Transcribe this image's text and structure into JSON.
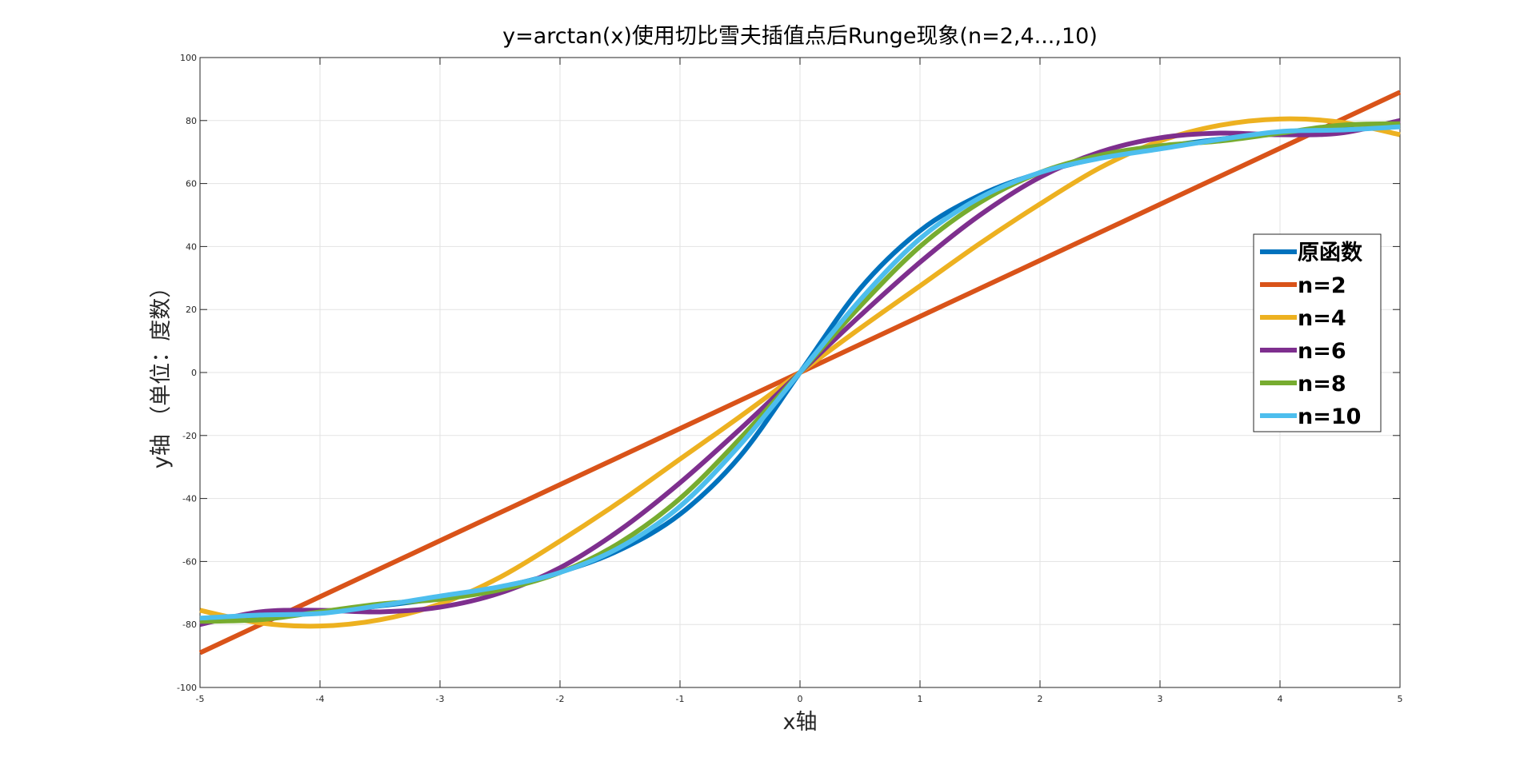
{
  "chart_data": {
    "type": "line",
    "title": "y=arctan(x)使用切比雪夫插值点后Runge现象(n=2,4...,10)",
    "xlabel": "x轴",
    "ylabel": "y轴 （单位：度数）",
    "xlim": [
      -5,
      5
    ],
    "ylim": [
      -100,
      100
    ],
    "xticks": [
      -5,
      -4,
      -3,
      -2,
      -1,
      0,
      1,
      2,
      3,
      4,
      5
    ],
    "yticks": [
      -100,
      -80,
      -60,
      -40,
      -20,
      0,
      20,
      40,
      60,
      80,
      100
    ],
    "grid": true,
    "legend_position": "right",
    "x": [
      -5,
      -4.5,
      -4,
      -3.5,
      -3,
      -2.5,
      -2,
      -1.5,
      -1,
      -0.5,
      0,
      0.5,
      1,
      1.5,
      2,
      2.5,
      3,
      3.5,
      4,
      4.5,
      5
    ],
    "series": [
      {
        "name": "原函数",
        "color": "#0072BD",
        "values": [
          -78.7,
          -77.5,
          -76.0,
          -74.1,
          -71.6,
          -68.2,
          -63.4,
          -56.3,
          -45.0,
          -26.6,
          0,
          26.6,
          45.0,
          56.3,
          63.4,
          68.2,
          71.6,
          74.1,
          76.0,
          77.5,
          78.7
        ]
      },
      {
        "name": "n=2",
        "color": "#D95319",
        "values": [
          -89,
          -80.1,
          -71.2,
          -62.3,
          -53.4,
          -44.5,
          -35.6,
          -26.7,
          -17.8,
          -8.9,
          0,
          8.9,
          17.8,
          26.7,
          35.6,
          44.5,
          53.4,
          62.3,
          71.2,
          80.1,
          89
        ]
      },
      {
        "name": "n=4",
        "color": "#EDB120",
        "values": [
          -75.5,
          -79.5,
          -80.5,
          -78.5,
          -73.5,
          -65,
          -53.5,
          -41,
          -27.5,
          -14,
          0,
          14,
          27.5,
          41,
          53.5,
          65,
          73.5,
          78.5,
          80.5,
          79.5,
          75.5
        ]
      },
      {
        "name": "n=6",
        "color": "#7E2F8E",
        "values": [
          -80,
          -76,
          -75.5,
          -76,
          -74.5,
          -70,
          -62,
          -50,
          -35,
          -18,
          0,
          18,
          35,
          50,
          62,
          70,
          74.5,
          76,
          75.5,
          76,
          80
        ]
      },
      {
        "name": "n=8",
        "color": "#77AC30",
        "values": [
          -79,
          -78.5,
          -76,
          -73.5,
          -72,
          -69,
          -63.5,
          -54,
          -40,
          -21,
          0,
          21,
          40,
          54,
          63.5,
          69,
          72,
          73.5,
          76,
          78.5,
          79
        ]
      },
      {
        "name": "n=10",
        "color": "#4DBEEE",
        "values": [
          -78,
          -77,
          -76.5,
          -74,
          -71,
          -68,
          -63.5,
          -55.5,
          -42.5,
          -23,
          0,
          23,
          42.5,
          55.5,
          63.5,
          68,
          71,
          74,
          76.5,
          77,
          78
        ]
      }
    ]
  }
}
